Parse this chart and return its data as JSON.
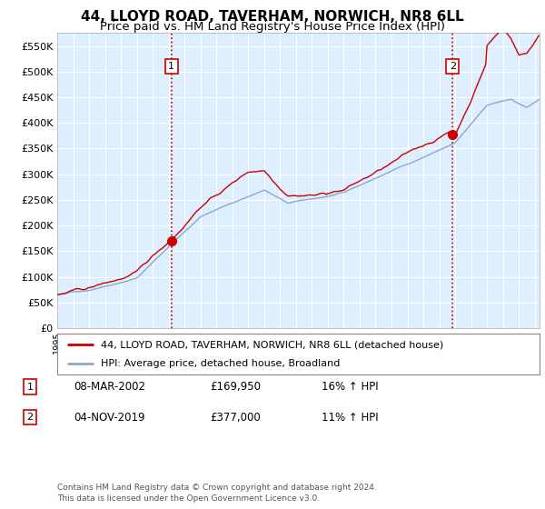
{
  "title": "44, LLOYD ROAD, TAVERHAM, NORWICH, NR8 6LL",
  "subtitle": "Price paid vs. HM Land Registry's House Price Index (HPI)",
  "ylim": [
    0,
    575000
  ],
  "yticks": [
    0,
    50000,
    100000,
    150000,
    200000,
    250000,
    300000,
    350000,
    400000,
    450000,
    500000,
    550000
  ],
  "ytick_labels": [
    "£0",
    "£50K",
    "£100K",
    "£150K",
    "£200K",
    "£250K",
    "£300K",
    "£350K",
    "£400K",
    "£450K",
    "£500K",
    "£550K"
  ],
  "sale1_date": 2002.18,
  "sale1_price": 169950,
  "sale1_label": "1",
  "sale2_date": 2019.84,
  "sale2_price": 377000,
  "sale2_label": "2",
  "legend_line1": "44, LLOYD ROAD, TAVERHAM, NORWICH, NR8 6LL (detached house)",
  "legend_line2": "HPI: Average price, detached house, Broadland",
  "table_row1": [
    "1",
    "08-MAR-2002",
    "£169,950",
    "16% ↑ HPI"
  ],
  "table_row2": [
    "2",
    "04-NOV-2019",
    "£377,000",
    "11% ↑ HPI"
  ],
  "footnote": "Contains HM Land Registry data © Crown copyright and database right 2024.\nThis data is licensed under the Open Government Licence v3.0.",
  "line_color_red": "#cc0000",
  "line_color_blue": "#88aacc",
  "bg_color": "#ffffff",
  "plot_bg_color": "#ddeeff",
  "grid_color": "#ffffff",
  "vline_color": "#cc0000",
  "title_fontsize": 11,
  "subtitle_fontsize": 9.5,
  "xlim_start": 1995,
  "xlim_end": 2025.3
}
